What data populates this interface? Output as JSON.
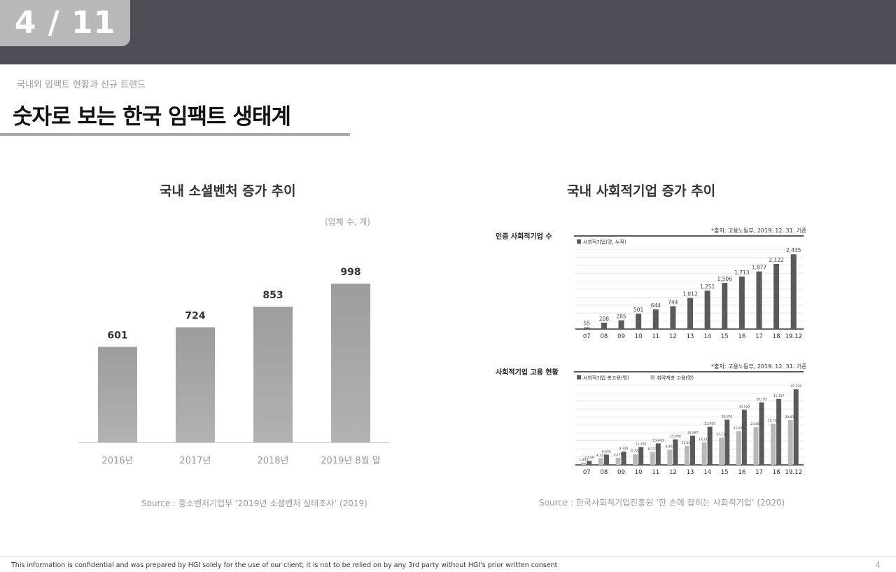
{
  "header": {
    "slide_counter": "4 / 11"
  },
  "slide": {
    "subtitle": "국내외 임팩트 현황과 신규 트렌드",
    "title": "숫자로 보는 한국 임팩트 생태계"
  },
  "left_panel": {
    "title": "국내 소셜벤처 증가 추이",
    "unit": "(업체 수, 개)",
    "source": "Source : 중소벤처기업부 ‘2019년 소셜벤처 실태조사’ (2019)"
  },
  "right_panel": {
    "title": "국내 사회적기업 증가 추이",
    "chart1_label": "인증 사회적기업 수",
    "chart1_note": "*출처: 고용노동부, 2019. 12. 31. 기준",
    "chart2_label": "사회적기업 고용 현황",
    "chart2_note": "*출처: 고용노동부, 2019. 12. 31. 기준",
    "source": "Source : 한국사회적기업진흥원 ‘한 손에 잡히는 사회적기업’ (2020)"
  },
  "chart_data": [
    {
      "type": "bar",
      "categories": [
        "2016년",
        "2017년",
        "2018년",
        "2019년 8월 말"
      ],
      "values": [
        601,
        724,
        853,
        998
      ],
      "title": "국내 소셜벤처 증가 추이",
      "ylabel": "(업체 수, 개)",
      "ylim": [
        0,
        1100
      ],
      "grid": false,
      "color": "#a6a6a6"
    },
    {
      "type": "bar",
      "title": "인증 사회적기업 수",
      "categories": [
        "07",
        "08",
        "09",
        "10",
        "11",
        "12",
        "13",
        "14",
        "15",
        "16",
        "17",
        "18",
        "19.12"
      ],
      "series": [
        {
          "name": "사회적기업(명, 누적)",
          "values": [
            55,
            208,
            285,
            501,
            644,
            744,
            1012,
            1251,
            1506,
            1713,
            1877,
            2122,
            2435
          ]
        }
      ],
      "ylim": [
        0,
        2600
      ],
      "grid": true,
      "legend": "top-left",
      "color": "#5a5a5a"
    },
    {
      "type": "bar",
      "title": "사회적기업 고용 현황",
      "categories": [
        "07",
        "08",
        "09",
        "10",
        "11",
        "12",
        "13",
        "14",
        "15",
        "16",
        "17",
        "18",
        "19.12"
      ],
      "series": [
        {
          "name": "사회적기업 총고용(명)",
          "values": [
            2539,
            6429,
            8329,
            11190,
            13443,
            15998,
            18267,
            23859,
            28301,
            34520,
            39195,
            41317,
            47322
          ]
        },
        {
          "name": "취약계층 고용(명)",
          "values": [
            1403,
            4213,
            4479,
            6722,
            8127,
            9405,
            11855,
            14112,
            17134,
            21093,
            23663,
            25736,
            28031
          ]
        }
      ],
      "ylim": [
        0,
        50000
      ],
      "grid": true,
      "legend": "top-left",
      "colors": [
        "#5a5a5a",
        "#b9b9b9"
      ]
    }
  ],
  "footer": {
    "disclaimer": "This information is confidential and was prepared by HGI solely for the use of our client; it is not to be relied on by any 3rd party without HGI's prior written consent",
    "page_number": "4"
  }
}
